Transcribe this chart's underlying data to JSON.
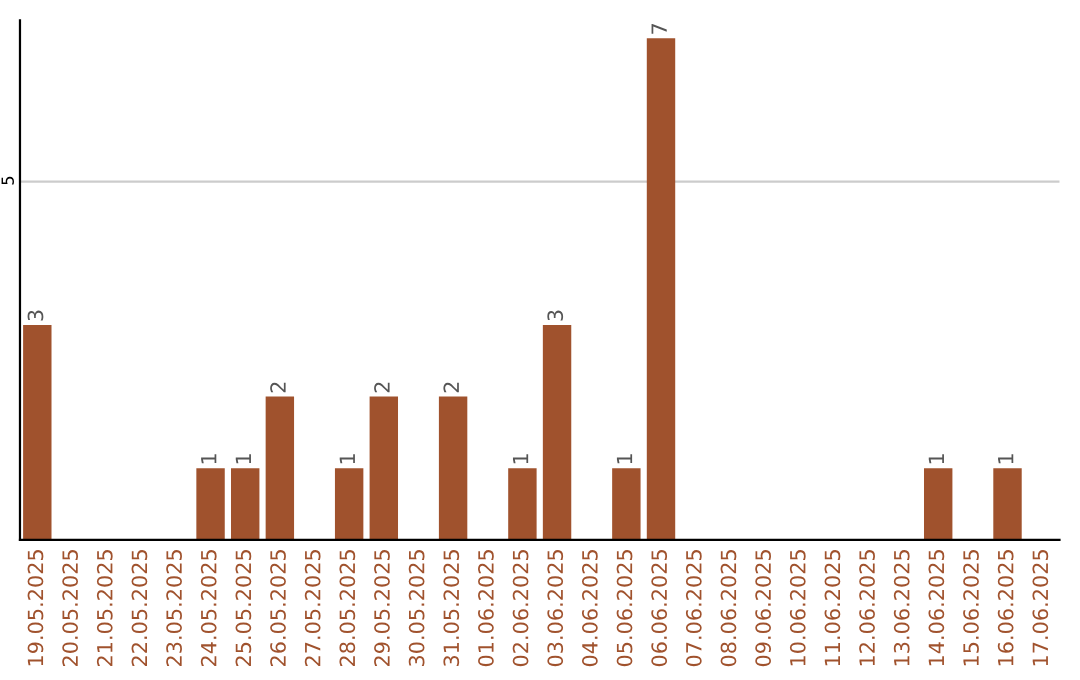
{
  "chart_data": {
    "type": "bar",
    "categories": [
      "19.05.2025",
      "20.05.2025",
      "21.05.2025",
      "22.05.2025",
      "23.05.2025",
      "24.05.2025",
      "25.05.2025",
      "26.05.2025",
      "27.05.2025",
      "28.05.2025",
      "29.05.2025",
      "30.05.2025",
      "31.05.2025",
      "01.06.2025",
      "02.06.2025",
      "03.06.2025",
      "04.06.2025",
      "05.06.2025",
      "06.06.2025",
      "07.06.2025",
      "08.06.2025",
      "09.06.2025",
      "10.06.2025",
      "11.06.2025",
      "12.06.2025",
      "13.06.2025",
      "14.06.2025",
      "15.06.2025",
      "16.06.2025",
      "17.06.2025"
    ],
    "values": [
      3,
      0,
      0,
      0,
      0,
      1,
      1,
      2,
      0,
      1,
      2,
      0,
      2,
      0,
      1,
      3,
      0,
      1,
      7,
      0,
      0,
      0,
      0,
      0,
      0,
      0,
      1,
      0,
      1,
      0
    ],
    "value_labels": [
      "3",
      null,
      null,
      null,
      null,
      "1",
      "1",
      "2",
      null,
      "1",
      "2",
      null,
      "2",
      null,
      "1",
      "3",
      null,
      "1",
      "7",
      null,
      null,
      null,
      null,
      null,
      null,
      null,
      "1",
      null,
      "1",
      null
    ],
    "color": "#a0522d",
    "ylim": [
      0,
      7.25
    ],
    "yticks": [
      5
    ],
    "grid": "y"
  }
}
